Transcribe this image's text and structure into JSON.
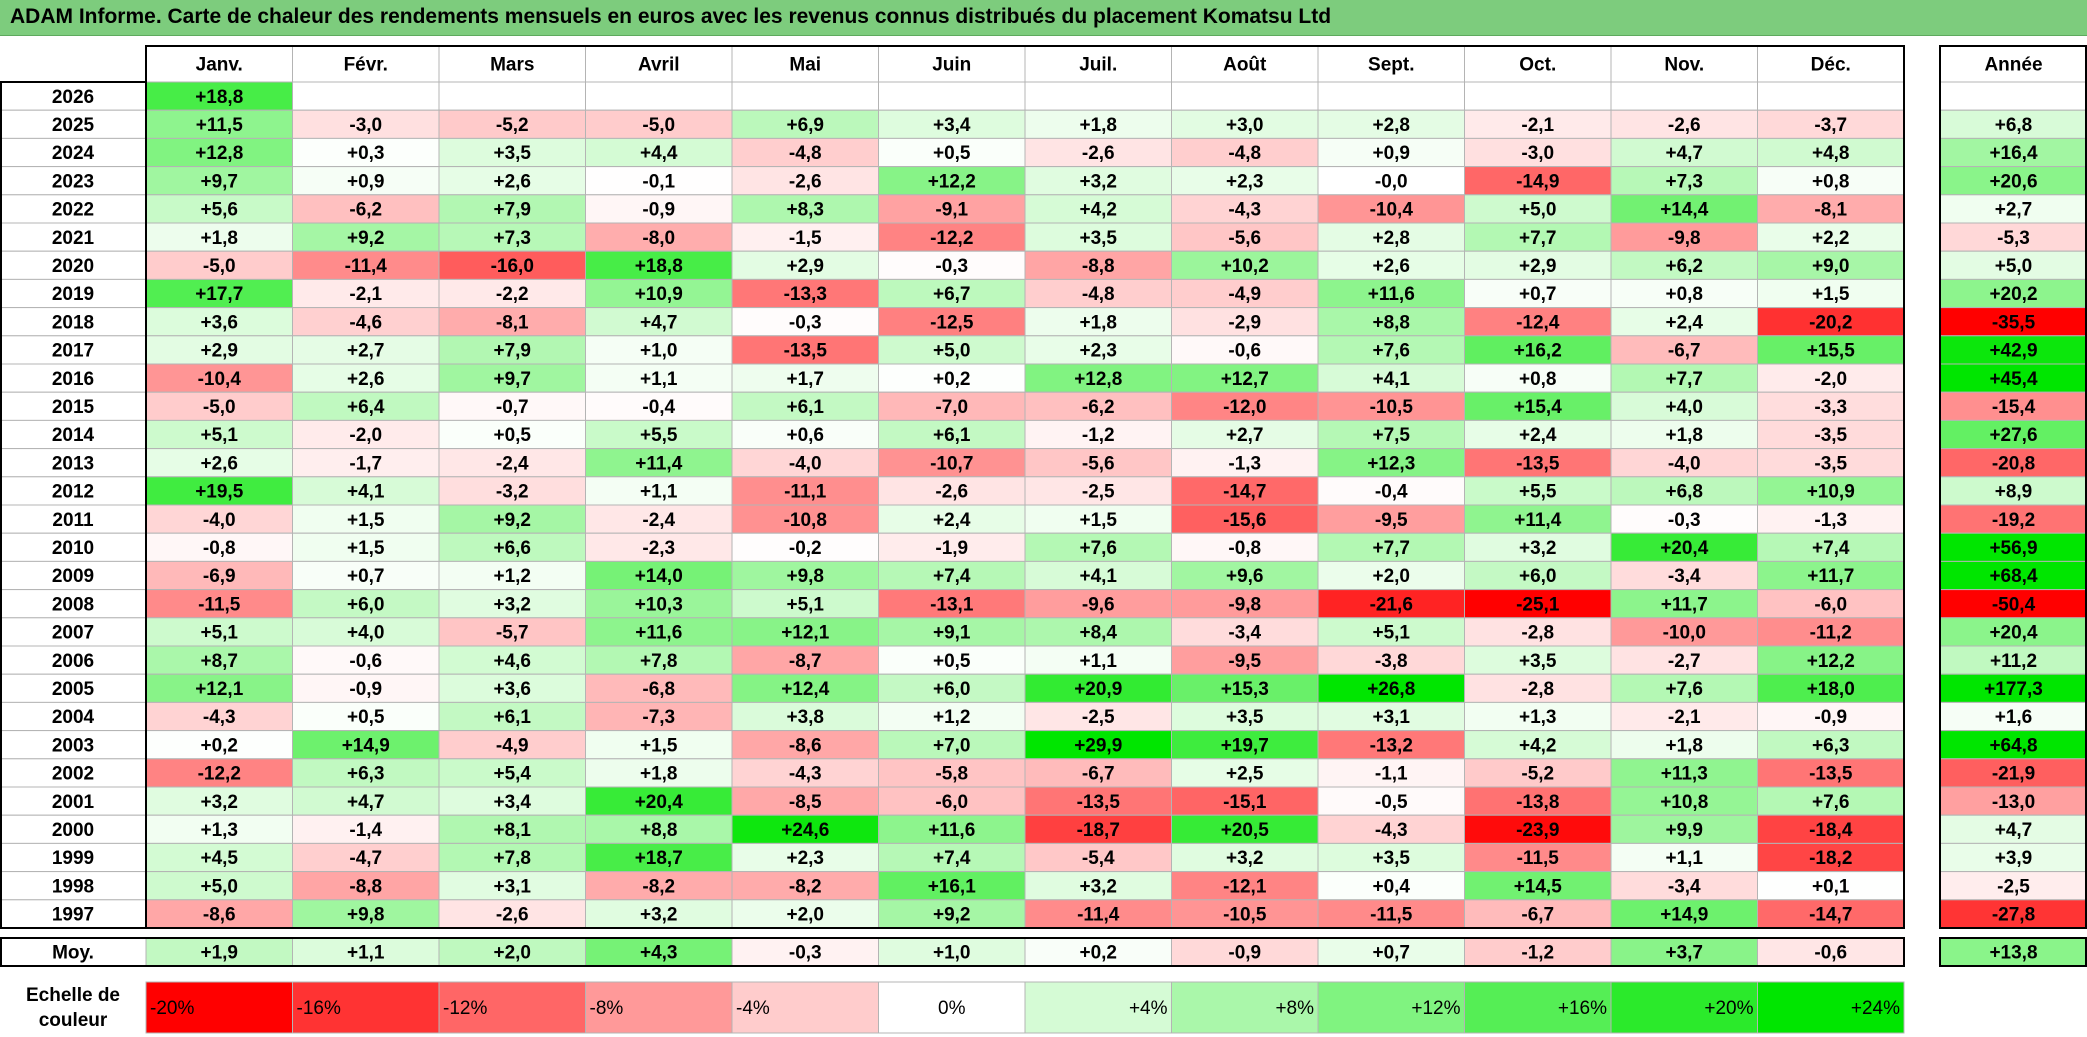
{
  "title": "ADAM Informe. Carte de chaleur des rendements mensuels en euros avec les revenus connus distribués du placement Komatsu Ltd",
  "chart_data": {
    "type": "heatmap",
    "months": [
      "Janv.",
      "Févr.",
      "Mars",
      "Avril",
      "Mai",
      "Juin",
      "Juil.",
      "Août",
      "Sept.",
      "Oct.",
      "Nov.",
      "Déc."
    ],
    "year_column_label": "Année",
    "average_row_label": "Moy.",
    "rows": [
      {
        "year": "2026",
        "values": [
          "+18,8",
          "",
          "",
          "",
          "",
          "",
          "",
          "",
          "",
          "",
          "",
          ""
        ],
        "annual": ""
      },
      {
        "year": "2025",
        "values": [
          "+11,5",
          "-3,0",
          "-5,2",
          "-5,0",
          "+6,9",
          "+3,4",
          "+1,8",
          "+3,0",
          "+2,8",
          "-2,1",
          "-2,6",
          "-3,7"
        ],
        "annual": "+6,8"
      },
      {
        "year": "2024",
        "values": [
          "+12,8",
          "+0,3",
          "+3,5",
          "+4,4",
          "-4,8",
          "+0,5",
          "-2,6",
          "-4,8",
          "+0,9",
          "-3,0",
          "+4,7",
          "+4,8"
        ],
        "annual": "+16,4"
      },
      {
        "year": "2023",
        "values": [
          "+9,7",
          "+0,9",
          "+2,6",
          "-0,1",
          "-2,6",
          "+12,2",
          "+3,2",
          "+2,3",
          "-0,0",
          "-14,9",
          "+7,3",
          "+0,8"
        ],
        "annual": "+20,6"
      },
      {
        "year": "2022",
        "values": [
          "+5,6",
          "-6,2",
          "+7,9",
          "-0,9",
          "+8,3",
          "-9,1",
          "+4,2",
          "-4,3",
          "-10,4",
          "+5,0",
          "+14,4",
          "-8,1"
        ],
        "annual": "+2,7"
      },
      {
        "year": "2021",
        "values": [
          "+1,8",
          "+9,2",
          "+7,3",
          "-8,0",
          "-1,5",
          "-12,2",
          "+3,5",
          "-5,6",
          "+2,8",
          "+7,7",
          "-9,8",
          "+2,2"
        ],
        "annual": "-5,3"
      },
      {
        "year": "2020",
        "values": [
          "-5,0",
          "-11,4",
          "-16,0",
          "+18,8",
          "+2,9",
          "-0,3",
          "-8,8",
          "+10,2",
          "+2,6",
          "+2,9",
          "+6,2",
          "+9,0"
        ],
        "annual": "+5,0"
      },
      {
        "year": "2019",
        "values": [
          "+17,7",
          "-2,1",
          "-2,2",
          "+10,9",
          "-13,3",
          "+6,7",
          "-4,8",
          "-4,9",
          "+11,6",
          "+0,7",
          "+0,8",
          "+1,5"
        ],
        "annual": "+20,2"
      },
      {
        "year": "2018",
        "values": [
          "+3,6",
          "-4,6",
          "-8,1",
          "+4,7",
          "-0,3",
          "-12,5",
          "+1,8",
          "-2,9",
          "+8,8",
          "-12,4",
          "+2,4",
          "-20,2"
        ],
        "annual": "-35,5"
      },
      {
        "year": "2017",
        "values": [
          "+2,9",
          "+2,7",
          "+7,9",
          "+1,0",
          "-13,5",
          "+5,0",
          "+2,3",
          "-0,6",
          "+7,6",
          "+16,2",
          "-6,7",
          "+15,5"
        ],
        "annual": "+42,9"
      },
      {
        "year": "2016",
        "values": [
          "-10,4",
          "+2,6",
          "+9,7",
          "+1,1",
          "+1,7",
          "+0,2",
          "+12,8",
          "+12,7",
          "+4,1",
          "+0,8",
          "+7,7",
          "-2,0"
        ],
        "annual": "+45,4"
      },
      {
        "year": "2015",
        "values": [
          "-5,0",
          "+6,4",
          "-0,7",
          "-0,4",
          "+6,1",
          "-7,0",
          "-6,2",
          "-12,0",
          "-10,5",
          "+15,4",
          "+4,0",
          "-3,3"
        ],
        "annual": "-15,4"
      },
      {
        "year": "2014",
        "values": [
          "+5,1",
          "-2,0",
          "+0,5",
          "+5,5",
          "+0,6",
          "+6,1",
          "-1,2",
          "+2,7",
          "+7,5",
          "+2,4",
          "+1,8",
          "-3,5"
        ],
        "annual": "+27,6"
      },
      {
        "year": "2013",
        "values": [
          "+2,6",
          "-1,7",
          "-2,4",
          "+11,4",
          "-4,0",
          "-10,7",
          "-5,6",
          "-1,3",
          "+12,3",
          "-13,5",
          "-4,0",
          "-3,5"
        ],
        "annual": "-20,8"
      },
      {
        "year": "2012",
        "values": [
          "+19,5",
          "+4,1",
          "-3,2",
          "+1,1",
          "-11,1",
          "-2,6",
          "-2,5",
          "-14,7",
          "-0,4",
          "+5,5",
          "+6,8",
          "+10,9"
        ],
        "annual": "+8,9"
      },
      {
        "year": "2011",
        "values": [
          "-4,0",
          "+1,5",
          "+9,2",
          "-2,4",
          "-10,8",
          "+2,4",
          "+1,5",
          "-15,6",
          "-9,5",
          "+11,4",
          "-0,3",
          "-1,3"
        ],
        "annual": "-19,2"
      },
      {
        "year": "2010",
        "values": [
          "-0,8",
          "+1,5",
          "+6,6",
          "-2,3",
          "-0,2",
          "-1,9",
          "+7,6",
          "-0,8",
          "+7,7",
          "+3,2",
          "+20,4",
          "+7,4"
        ],
        "annual": "+56,9"
      },
      {
        "year": "2009",
        "values": [
          "-6,9",
          "+0,7",
          "+1,2",
          "+14,0",
          "+9,8",
          "+7,4",
          "+4,1",
          "+9,6",
          "+2,0",
          "+6,0",
          "-3,4",
          "+11,7"
        ],
        "annual": "+68,4"
      },
      {
        "year": "2008",
        "values": [
          "-11,5",
          "+6,0",
          "+3,2",
          "+10,3",
          "+5,1",
          "-13,1",
          "-9,6",
          "-9,8",
          "-21,6",
          "-25,1",
          "+11,7",
          "-6,0"
        ],
        "annual": "-50,4"
      },
      {
        "year": "2007",
        "values": [
          "+5,1",
          "+4,0",
          "-5,7",
          "+11,6",
          "+12,1",
          "+9,1",
          "+8,4",
          "-3,4",
          "+5,1",
          "-2,8",
          "-10,0",
          "-11,2"
        ],
        "annual": "+20,4"
      },
      {
        "year": "2006",
        "values": [
          "+8,7",
          "-0,6",
          "+4,6",
          "+7,8",
          "-8,7",
          "+0,5",
          "+1,1",
          "-9,5",
          "-3,8",
          "+3,5",
          "-2,7",
          "+12,2"
        ],
        "annual": "+11,2"
      },
      {
        "year": "2005",
        "values": [
          "+12,1",
          "-0,9",
          "+3,6",
          "-6,8",
          "+12,4",
          "+6,0",
          "+20,9",
          "+15,3",
          "+26,8",
          "-2,8",
          "+7,6",
          "+18,0"
        ],
        "annual": "+177,3"
      },
      {
        "year": "2004",
        "values": [
          "-4,3",
          "+0,5",
          "+6,1",
          "-7,3",
          "+3,8",
          "+1,2",
          "-2,5",
          "+3,5",
          "+3,1",
          "+1,3",
          "-2,1",
          "-0,9"
        ],
        "annual": "+1,6"
      },
      {
        "year": "2003",
        "values": [
          "+0,2",
          "+14,9",
          "-4,9",
          "+1,5",
          "-8,6",
          "+7,0",
          "+29,9",
          "+19,7",
          "-13,2",
          "+4,2",
          "+1,8",
          "+6,3"
        ],
        "annual": "+64,8"
      },
      {
        "year": "2002",
        "values": [
          "-12,2",
          "+6,3",
          "+5,4",
          "+1,8",
          "-4,3",
          "-5,8",
          "-6,7",
          "+2,5",
          "-1,1",
          "-5,2",
          "+11,3",
          "-13,5"
        ],
        "annual": "-21,9"
      },
      {
        "year": "2001",
        "values": [
          "+3,2",
          "+4,7",
          "+3,4",
          "+20,4",
          "-8,5",
          "-6,0",
          "-13,5",
          "-15,1",
          "-0,5",
          "-13,8",
          "+10,8",
          "+7,6"
        ],
        "annual": "-13,0"
      },
      {
        "year": "2000",
        "values": [
          "+1,3",
          "-1,4",
          "+8,1",
          "+8,8",
          "+24,6",
          "+11,6",
          "-18,7",
          "+20,5",
          "-4,3",
          "-23,9",
          "+9,9",
          "-18,4"
        ],
        "annual": "+4,7"
      },
      {
        "year": "1999",
        "values": [
          "+4,5",
          "-4,7",
          "+7,8",
          "+18,7",
          "+2,3",
          "+7,4",
          "-5,4",
          "+3,2",
          "+3,5",
          "-11,5",
          "+1,1",
          "-18,2"
        ],
        "annual": "+3,9"
      },
      {
        "year": "1998",
        "values": [
          "+5,0",
          "-8,8",
          "+3,1",
          "-8,2",
          "-8,2",
          "+16,1",
          "+3,2",
          "-12,1",
          "+0,4",
          "+14,5",
          "-3,4",
          "+0,1"
        ],
        "annual": "-2,5"
      },
      {
        "year": "1997",
        "values": [
          "-8,6",
          "+9,8",
          "-2,6",
          "+3,2",
          "+2,0",
          "+9,2",
          "-11,4",
          "-10,5",
          "-11,5",
          "-6,7",
          "+14,9",
          "-14,7"
        ],
        "annual": "-27,8"
      }
    ],
    "averages": [
      "+1,9",
      "+1,1",
      "+2,0",
      "+4,3",
      "-0,3",
      "+1,0",
      "+0,2",
      "-0,9",
      "+0,7",
      "-1,2",
      "+3,7",
      "-0,6"
    ],
    "average_annual": "+13,8",
    "scale_label": "Echelle de couleur",
    "scale": [
      "-20%",
      "-16%",
      "-12%",
      "-8%",
      "-4%",
      "0%",
      "+4%",
      "+8%",
      "+12%",
      "+16%",
      "+20%",
      "+24%"
    ],
    "colors": {
      "strong_negative": "#ff0000",
      "neutral": "#ffffff",
      "strong_positive": "#00e600",
      "title_bar": "#7dcc7d"
    }
  }
}
